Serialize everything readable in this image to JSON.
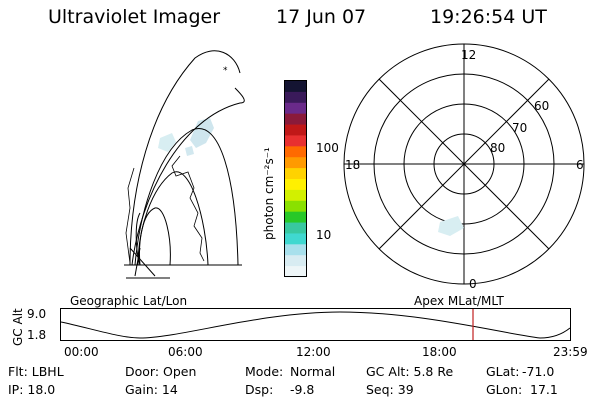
{
  "header": {
    "title": "Ultraviolet Imager",
    "date": "17 Jun 07",
    "time": "19:26:54 UT"
  },
  "colorbar": {
    "unit_label": "photon cm⁻²s⁻¹",
    "tick_100": "100",
    "tick_10": "10",
    "colors": [
      "#141432",
      "#3a1a5a",
      "#6a2a8a",
      "#8a1a3a",
      "#c01818",
      "#e83030",
      "#ff6a00",
      "#ff9a00",
      "#ffd200",
      "#fff000",
      "#d2f000",
      "#8ae000",
      "#28c828",
      "#38c8a0",
      "#40d8d0",
      "#a8e0ec",
      "#d8ecf2",
      "#eef6f8"
    ]
  },
  "polar_plot": {
    "mlt_labels": {
      "top": "12",
      "left": "18",
      "right": "6",
      "bottom": "0"
    },
    "mlat_labels": {
      "ring1": "60",
      "ring2": "70",
      "ring3": "80"
    }
  },
  "left_map_label": "Geographic Lat/Lon",
  "right_map_label": "Apex MLat/MLT",
  "altitude_plot": {
    "axis_label": "GC Alt",
    "y_max_label": "9.0",
    "y_min_label": "1.8",
    "x_ticks": [
      "00:00",
      "06:00",
      "12:00",
      "18:00",
      "23:59"
    ],
    "marker_color": "#c02020"
  },
  "info": {
    "row1": {
      "flt": "Flt: LBHL",
      "door": "Door: Open",
      "mode_label": "Mode:",
      "mode_value": "Normal",
      "gcalt": "GC Alt: 5.8 Re",
      "glat_label": "GLat:",
      "glat_value": "-71.0"
    },
    "row2": {
      "ip": "IP: 18.0",
      "gain": "Gain: 14",
      "dsp_label": "Dsp:",
      "dsp_value": "-9.8",
      "seq": "Seq: 39",
      "glon_label": "GLon:",
      "glon_value": "17.1"
    }
  }
}
